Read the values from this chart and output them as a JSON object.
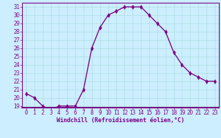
{
  "x": [
    0,
    1,
    2,
    3,
    4,
    5,
    6,
    7,
    8,
    9,
    10,
    11,
    12,
    13,
    14,
    15,
    16,
    17,
    18,
    19,
    20,
    21,
    22,
    23
  ],
  "y": [
    20.5,
    20.0,
    19.0,
    18.5,
    19.0,
    19.0,
    19.0,
    21.0,
    26.0,
    28.5,
    30.0,
    30.5,
    31.0,
    31.0,
    31.0,
    30.0,
    29.0,
    28.0,
    25.5,
    24.0,
    23.0,
    22.5,
    22.0,
    22.0
  ],
  "line_color": "#7b0082",
  "marker": "d",
  "marker_color": "#7b0082",
  "bg_color": "#cceeff",
  "grid_color": "#aadddd",
  "xlabel": "Windchill (Refroidissement éolien,°C)",
  "ylim": [
    18.8,
    31.5
  ],
  "xlim": [
    -0.5,
    23.5
  ],
  "xtick_labels": [
    "0",
    "1",
    "2",
    "3",
    "4",
    "5",
    "6",
    "7",
    "8",
    "9",
    "10",
    "11",
    "12",
    "13",
    "14",
    "15",
    "16",
    "17",
    "18",
    "19",
    "20",
    "21",
    "22",
    "23"
  ],
  "ytick_labels": [
    "19",
    "20",
    "21",
    "22",
    "23",
    "24",
    "25",
    "26",
    "27",
    "28",
    "29",
    "30",
    "31"
  ],
  "ytick_vals": [
    19,
    20,
    21,
    22,
    23,
    24,
    25,
    26,
    27,
    28,
    29,
    30,
    31
  ],
  "xlabel_color": "#7b0082",
  "tick_color": "#7b0082",
  "spine_color": "#7b0082",
  "linewidth": 1.0,
  "markersize": 3.0,
  "tick_fontsize": 5.5,
  "xlabel_fontsize": 6.0
}
